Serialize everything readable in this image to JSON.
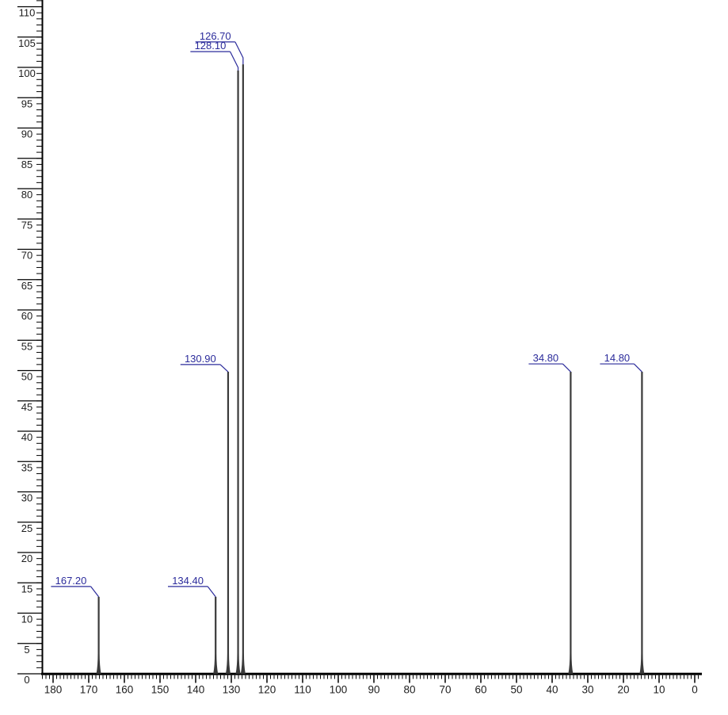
{
  "chart_data": {
    "type": "line",
    "subtype": "nmr-peak-spectrum",
    "title": "",
    "xlabel": "",
    "ylabel": "",
    "x_axis": {
      "reversed": true,
      "major_step": 10,
      "minor_step": 1,
      "range_min": -1,
      "range_max": 183,
      "label_values": [
        180,
        170,
        160,
        150,
        140,
        130,
        120,
        110,
        100,
        90,
        80,
        70,
        60,
        50,
        40,
        30,
        20,
        10,
        0
      ]
    },
    "y_axis": {
      "major_step": 5,
      "minor_step": 1,
      "range_min": 0,
      "range_max": 111,
      "label_values": [
        0,
        5,
        10,
        15,
        20,
        25,
        30,
        35,
        40,
        45,
        50,
        55,
        60,
        65,
        70,
        75,
        80,
        85,
        90,
        95,
        100,
        105,
        110
      ]
    },
    "peaks": [
      {
        "label": "167.20",
        "ppm": 167.2,
        "intensity": 12.7,
        "label_level": 14.4
      },
      {
        "label": "134.40",
        "ppm": 134.4,
        "intensity": 12.7,
        "label_level": 14.4
      },
      {
        "label": "130.90",
        "ppm": 130.9,
        "intensity": 49.8,
        "label_level": 51.0
      },
      {
        "label": "128.10",
        "ppm": 128.1,
        "intensity": 99.5,
        "label_level": 102.6
      },
      {
        "label": "126.70",
        "ppm": 126.7,
        "intensity": 100.5,
        "label_level": 104.2
      },
      {
        "label": "34.80",
        "ppm": 34.8,
        "intensity": 49.8,
        "label_level": 51.1
      },
      {
        "label": "14.80",
        "ppm": 14.8,
        "intensity": 49.8,
        "label_level": 51.1
      }
    ],
    "layout_hints": {
      "grid": "off",
      "legend": "none",
      "axes": "left-and-bottom-only",
      "x_axis_direction": "high-to-low (ppm style)"
    },
    "colors": {
      "background": "#ffffff",
      "axis": "#000000",
      "tick_label": "#1d1d1d",
      "peak": "#3a3a3a",
      "label": "#2b2b9b"
    }
  }
}
